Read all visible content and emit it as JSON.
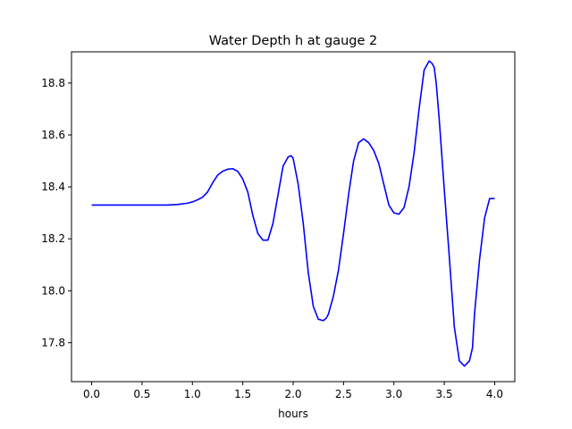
{
  "chart_data": {
    "type": "line",
    "title": "Water Depth h at gauge 2",
    "xlabel": "hours",
    "ylabel": "",
    "xlim": [
      -0.2,
      4.2
    ],
    "ylim": [
      17.65,
      18.92
    ],
    "xticks": [
      0.0,
      0.5,
      1.0,
      1.5,
      2.0,
      2.5,
      3.0,
      3.5,
      4.0
    ],
    "xtick_labels": [
      "0.0",
      "0.5",
      "1.0",
      "1.5",
      "2.0",
      "2.5",
      "3.0",
      "3.5",
      "4.0"
    ],
    "yticks": [
      17.8,
      18.0,
      18.2,
      18.4,
      18.6,
      18.8
    ],
    "ytick_labels": [
      "17.8",
      "18.0",
      "18.2",
      "18.4",
      "18.6",
      "18.8"
    ],
    "grid": false,
    "legend": "none",
    "series": [
      {
        "color": "#0000ff",
        "x": [
          0.0,
          0.2,
          0.4,
          0.6,
          0.75,
          0.85,
          0.95,
          1.0,
          1.05,
          1.1,
          1.15,
          1.2,
          1.25,
          1.3,
          1.35,
          1.4,
          1.45,
          1.5,
          1.55,
          1.6,
          1.65,
          1.7,
          1.75,
          1.8,
          1.85,
          1.9,
          1.95,
          1.98,
          2.0,
          2.02,
          2.05,
          2.1,
          2.15,
          2.2,
          2.25,
          2.3,
          2.33,
          2.35,
          2.4,
          2.45,
          2.5,
          2.55,
          2.6,
          2.65,
          2.7,
          2.75,
          2.8,
          2.85,
          2.9,
          2.95,
          3.0,
          3.05,
          3.1,
          3.15,
          3.2,
          3.25,
          3.3,
          3.35,
          3.38,
          3.4,
          3.42,
          3.45,
          3.5,
          3.55,
          3.6,
          3.65,
          3.7,
          3.75,
          3.78,
          3.8,
          3.85,
          3.9,
          3.95,
          4.0
        ],
        "y": [
          18.33,
          18.33,
          18.33,
          18.33,
          18.33,
          18.332,
          18.337,
          18.342,
          18.35,
          18.36,
          18.38,
          18.415,
          18.445,
          18.46,
          18.468,
          18.47,
          18.46,
          18.43,
          18.38,
          18.29,
          18.22,
          18.195,
          18.195,
          18.26,
          18.37,
          18.48,
          18.515,
          18.52,
          18.51,
          18.47,
          18.41,
          18.26,
          18.07,
          17.94,
          17.89,
          17.885,
          17.895,
          17.91,
          17.98,
          18.08,
          18.22,
          18.37,
          18.5,
          18.57,
          18.585,
          18.57,
          18.54,
          18.49,
          18.41,
          18.33,
          18.3,
          18.295,
          18.32,
          18.4,
          18.53,
          18.7,
          18.85,
          18.885,
          18.875,
          18.86,
          18.8,
          18.66,
          18.39,
          18.13,
          17.86,
          17.73,
          17.71,
          17.73,
          17.78,
          17.91,
          18.12,
          18.28,
          18.355,
          18.355
        ]
      }
    ]
  }
}
